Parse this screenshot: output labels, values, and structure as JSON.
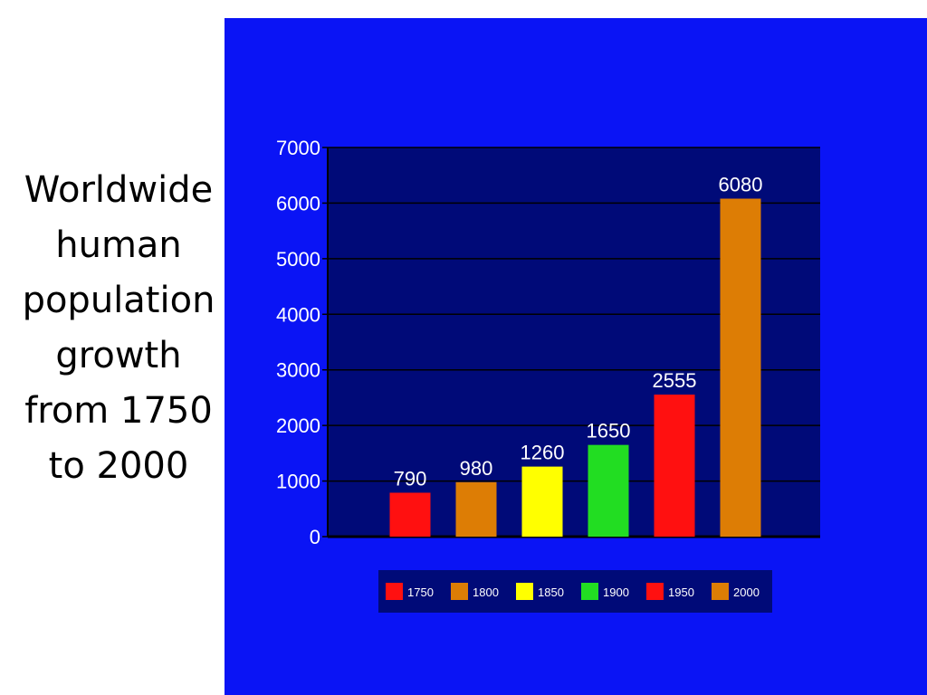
{
  "slide": {
    "title_lines": [
      "Worldwide",
      "human",
      "population",
      "growth",
      "from 1750",
      "to 2000"
    ]
  },
  "colors": {
    "panel_background": "#0a14f5",
    "plot_background": "#000a78",
    "gridline": "#000000",
    "text": "#ffffff"
  },
  "chart_data": {
    "type": "bar",
    "categories": [
      "1750",
      "1800",
      "1850",
      "1900",
      "1950",
      "2000"
    ],
    "values": [
      790,
      980,
      1260,
      1650,
      2555,
      6080
    ],
    "data_labels": [
      "790",
      "980",
      "1260",
      "1650",
      "2555",
      "6080"
    ],
    "bar_colors": [
      "#ff1010",
      "#dd7d05",
      "#ffff00",
      "#22dd22",
      "#ff1010",
      "#dd7d05"
    ],
    "ylim": [
      0,
      7000
    ],
    "yticks": [
      0,
      1000,
      2000,
      3000,
      4000,
      5000,
      6000,
      7000
    ],
    "ytick_labels": [
      "0",
      "1000",
      "2000",
      "3000",
      "4000",
      "5000",
      "6000",
      "7000"
    ],
    "grid": true,
    "legend_position": "bottom",
    "legend": [
      {
        "label": "1750",
        "color": "#ff1010"
      },
      {
        "label": "1800",
        "color": "#dd7d05"
      },
      {
        "label": "1850",
        "color": "#ffff00"
      },
      {
        "label": "1900",
        "color": "#22dd22"
      },
      {
        "label": "1950",
        "color": "#ff1010"
      },
      {
        "label": "2000",
        "color": "#dd7d05"
      }
    ],
    "title": "",
    "xlabel": "",
    "ylabel": ""
  }
}
